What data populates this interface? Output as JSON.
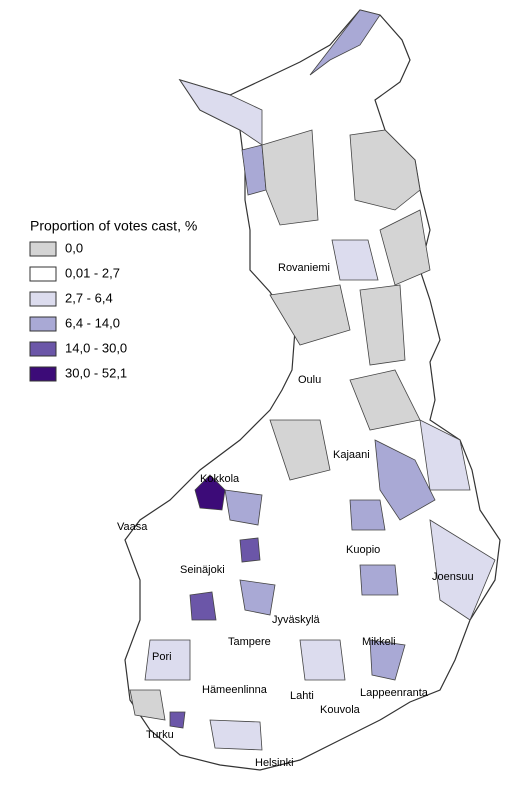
{
  "legend": {
    "title": "Proportion of votes cast, %",
    "items": [
      {
        "label": "0,0",
        "color": "#d4d4d4"
      },
      {
        "label": "0,01 - 2,7",
        "color": "#ffffff"
      },
      {
        "label": "2,7 - 6,4",
        "color": "#dcdcee"
      },
      {
        "label": "6,4 - 14,0",
        "color": "#a9a9d5"
      },
      {
        "label": "14,0 - 30,0",
        "color": "#6b56a8"
      },
      {
        "label": "30,0 - 52,1",
        "color": "#3c0b78"
      }
    ]
  },
  "cities": [
    "Rovaniemi",
    "Oulu",
    "Kajaani",
    "Kokkola",
    "Vaasa",
    "Kuopio",
    "Seinäjoki",
    "Joensuu",
    "Jyväskylä",
    "Tampere",
    "Mikkeli",
    "Pori",
    "Hämeenlinna",
    "Lahti",
    "Lappeenranta",
    "Kouvola",
    "Turku",
    "Helsinki"
  ]
}
